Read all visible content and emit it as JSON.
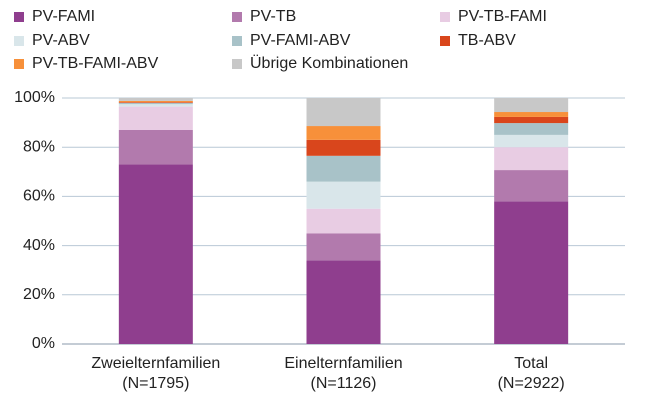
{
  "chart_data": {
    "type": "stacked_bar",
    "categories": [
      "Zweielternfamilien\n(N=1795)",
      "Einelternfamilien\n(N=1126)",
      "Total\n(N=2922)"
    ],
    "series": [
      {
        "name": "PV-FAMI",
        "color": "#8f3e8e",
        "values": [
          73,
          34,
          58
        ]
      },
      {
        "name": "PV-TB",
        "color": "#b27aad",
        "values": [
          14,
          11,
          12.7
        ]
      },
      {
        "name": "PV-TB-FAMI",
        "color": "#e8cce3",
        "values": [
          9.5,
          10,
          9.3
        ]
      },
      {
        "name": "PV-ABV",
        "color": "#d9e6ea",
        "values": [
          1,
          11,
          5
        ]
      },
      {
        "name": "PV-FAMI-ABV",
        "color": "#a8c2c8",
        "values": [
          0.5,
          10.5,
          4.8
        ]
      },
      {
        "name": "TB-ABV",
        "color": "#d9461c",
        "values": [
          0.3,
          6.5,
          2.5
        ]
      },
      {
        "name": "PV-TB-FAMI-ABV",
        "color": "#f7903a",
        "values": [
          0.5,
          5.6,
          2
        ]
      },
      {
        "name": "Übrige Kombinationen",
        "color": "#c8c8c8",
        "values": [
          1.2,
          11.4,
          5.7
        ]
      }
    ],
    "ylim": [
      0,
      100
    ],
    "yticks": [
      {
        "value": 0,
        "label": "0%"
      },
      {
        "value": 20,
        "label": "20%"
      },
      {
        "value": 40,
        "label": "40%"
      },
      {
        "value": 60,
        "label": "60%"
      },
      {
        "value": 80,
        "label": "80%"
      },
      {
        "value": 100,
        "label": "100%"
      }
    ],
    "grid": true
  }
}
